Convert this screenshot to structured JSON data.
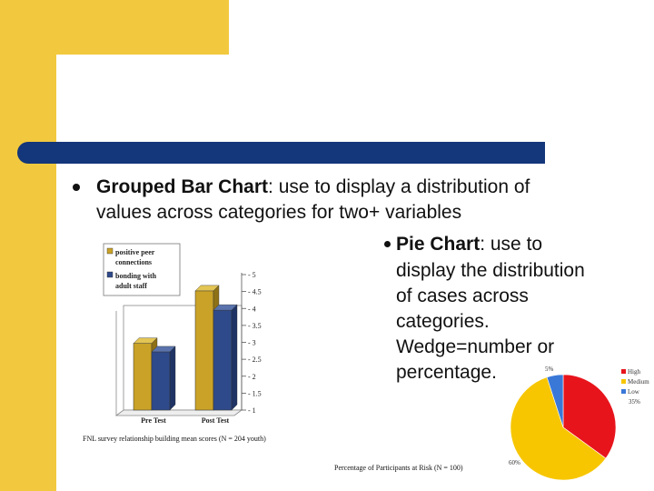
{
  "slide": {
    "bullet1": {
      "term": "Grouped Bar Chart",
      "rest_line1": ": use to display a distribution of",
      "line2": "values across categories for two+ variables"
    },
    "bullet2": {
      "term": "Pie Chart",
      "rest_line1": ": use to",
      "line2": "display the distribution",
      "line3": "of cases across",
      "line4": "categories.",
      "line5": "Wedge=number or",
      "line6": "percentage."
    },
    "bar_caption": "FNL survey relationship building mean scores (N = 204 youth)",
    "pie_caption": "Percentage of Participants at Risk (N = 100)"
  },
  "colors": {
    "accent_yellow": "#f2c93e",
    "rule_navy": "#14367a",
    "bar_gold": "#c9a227",
    "bar_blue": "#2f4a8a",
    "pie_high": "#e8141c",
    "pie_medium": "#f7c600",
    "pie_low": "#3a78d8"
  },
  "chart_data": [
    {
      "type": "bar",
      "categories": [
        "Pre Test",
        "Post Test"
      ],
      "series": [
        {
          "name": "positive peer connections",
          "values": [
            2.97,
            4.52
          ]
        },
        {
          "name": "bonding with adult staff",
          "values": [
            2.72,
            3.95
          ]
        }
      ],
      "yticks": [
        "1",
        "1.5",
        "2",
        "2.5",
        "3",
        "3.5",
        "4",
        "4.5",
        "5"
      ],
      "ylim": [
        1,
        5
      ],
      "legend": "top-left"
    },
    {
      "type": "pie",
      "categories": [
        "High",
        "Medium",
        "Low"
      ],
      "values": [
        35,
        60,
        5
      ],
      "labels": [
        "35%",
        "60%",
        "5%"
      ],
      "legend": "right"
    }
  ]
}
